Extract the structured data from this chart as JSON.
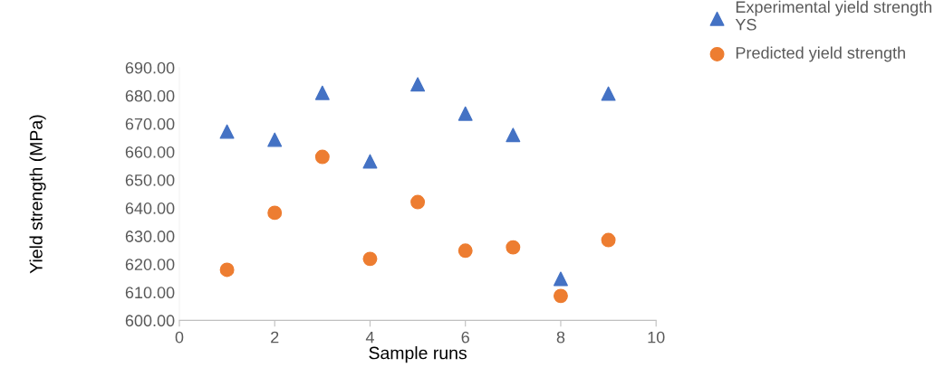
{
  "chart_data": {
    "type": "scatter",
    "xlabel": "Sample runs",
    "ylabel": "Yield strength (MPa)",
    "x": [
      1,
      2,
      3,
      4,
      5,
      6,
      7,
      8,
      9
    ],
    "series": [
      {
        "name": "Experimental yield strength YS",
        "color": "#4472c4",
        "marker": "triangle",
        "values": [
          667.2,
          664.3,
          681,
          656.6,
          684,
          673.6,
          666,
          614.8,
          680.7
        ]
      },
      {
        "name": "Predicted yield strength",
        "color": "#ed7d31",
        "marker": "circle",
        "values": [
          618,
          638.3,
          658.2,
          621.9,
          642.1,
          624.8,
          626,
          608.7,
          628.6
        ]
      }
    ],
    "xlim": [
      0,
      10
    ],
    "xticks": [
      0,
      2,
      4,
      6,
      8,
      10
    ],
    "ylim": [
      600,
      690
    ],
    "yticks": [
      {
        "value": 600,
        "label": "600.00"
      },
      {
        "value": 610,
        "label": "610.00"
      },
      {
        "value": 620,
        "label": "620.00"
      },
      {
        "value": 630,
        "label": "630.00"
      },
      {
        "value": 640,
        "label": "640.00"
      },
      {
        "value": 650,
        "label": "650.00"
      },
      {
        "value": 660,
        "label": "660.00"
      },
      {
        "value": 670,
        "label": "670.00"
      },
      {
        "value": 680,
        "label": "680.00"
      },
      {
        "value": 690,
        "label": "690.00"
      }
    ],
    "grid": false,
    "legend": "top right"
  }
}
